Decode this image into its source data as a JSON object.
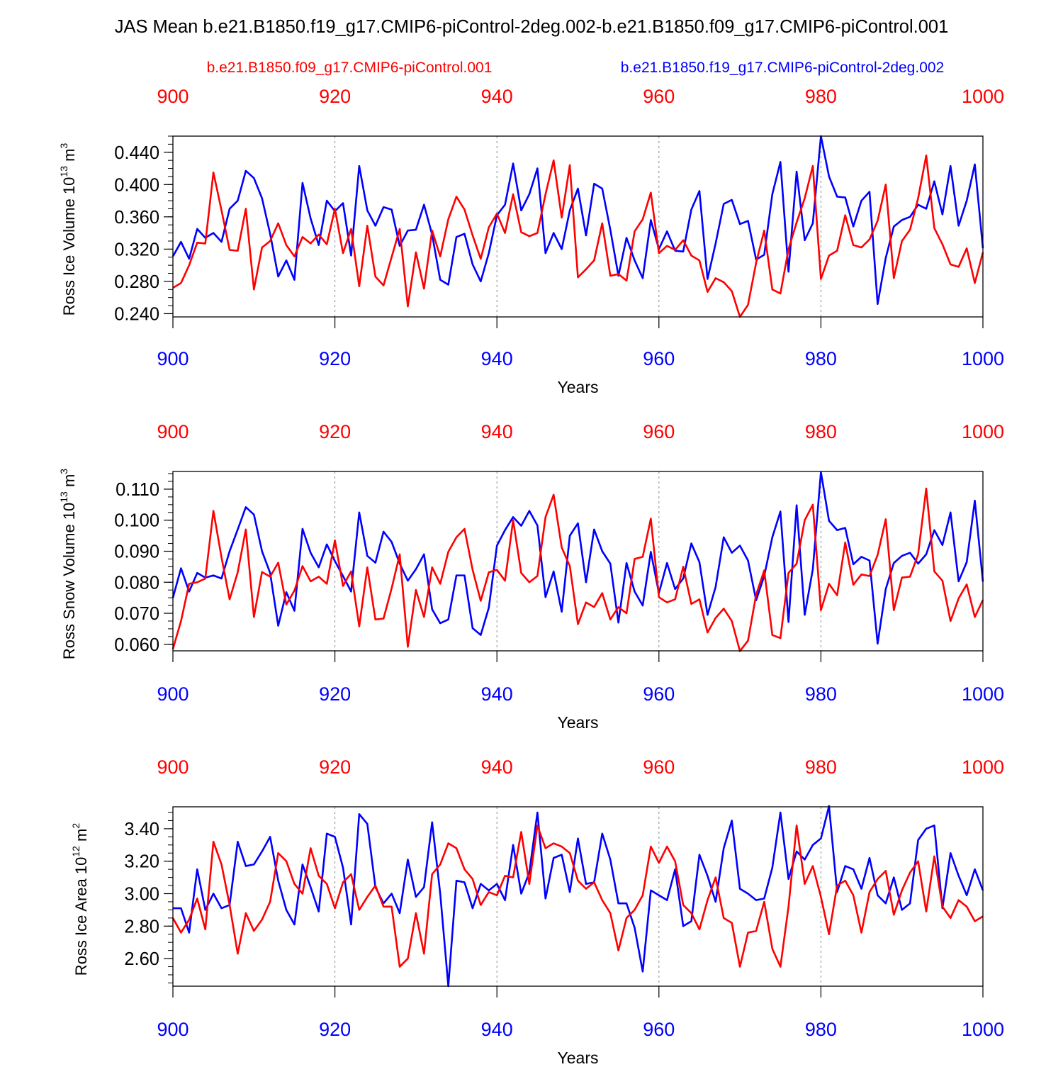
{
  "title": "JAS Mean b.e21.B1850.f19_g17.CMIP6-piControl-2deg.002-b.e21.B1850.f09_g17.CMIP6-piControl.001",
  "legend": {
    "red_label": "b.e21.B1850.f09_g17.CMIP6-piControl.001",
    "blue_label": "b.e21.B1850.f19_g17.CMIP6-piControl-2deg.002"
  },
  "colors": {
    "red": "#ff0000",
    "blue": "#0000ff",
    "axis": "#000000",
    "grid": "#888888"
  },
  "chart_data": [
    {
      "type": "line",
      "ylabel": "Ross Ice Volume 10",
      "ylabel_exp": "13",
      "ylabel_unit": " m",
      "ylabel_unit_exp": "3",
      "xlabel": "Years",
      "xlim": [
        900,
        1000
      ],
      "ylim": [
        0.236,
        0.46
      ],
      "yticks": [
        0.24,
        0.28,
        0.32,
        0.36,
        0.4,
        0.44
      ],
      "ytick_labels": [
        "0.240",
        "0.280",
        "0.320",
        "0.360",
        "0.400",
        "0.440"
      ],
      "yminor_step": 0.01,
      "xticks": [
        900,
        920,
        940,
        960,
        980,
        1000
      ],
      "xtick_labels": [
        "900",
        "920",
        "940",
        "960",
        "980",
        "1000"
      ],
      "grid_x": [
        920,
        940,
        960,
        980
      ],
      "series": [
        {
          "name": "b.e21.B1850.f19_g17.CMIP6-piControl-2deg.002",
          "color": "blue",
          "x_start": 900,
          "values": [
            0.311,
            0.329,
            0.308,
            0.345,
            0.334,
            0.34,
            0.329,
            0.37,
            0.38,
            0.417,
            0.408,
            0.383,
            0.339,
            0.286,
            0.306,
            0.282,
            0.402,
            0.358,
            0.325,
            0.38,
            0.367,
            0.377,
            0.312,
            0.423,
            0.368,
            0.349,
            0.372,
            0.369,
            0.324,
            0.343,
            0.344,
            0.375,
            0.338,
            0.282,
            0.276,
            0.335,
            0.339,
            0.301,
            0.28,
            0.315,
            0.362,
            0.375,
            0.426,
            0.368,
            0.388,
            0.42,
            0.315,
            0.34,
            0.32,
            0.368,
            0.395,
            0.337,
            0.401,
            0.395,
            0.344,
            0.287,
            0.334,
            0.306,
            0.284,
            0.356,
            0.32,
            0.342,
            0.318,
            0.317,
            0.369,
            0.392,
            0.283,
            0.327,
            0.376,
            0.381,
            0.351,
            0.355,
            0.307,
            0.313,
            0.388,
            0.428,
            0.292,
            0.416,
            0.331,
            0.352,
            0.46,
            0.41,
            0.385,
            0.384,
            0.348,
            0.38,
            0.391,
            0.252,
            0.309,
            0.348,
            0.356,
            0.36,
            0.375,
            0.37,
            0.404,
            0.363,
            0.423,
            0.349,
            0.38,
            0.425,
            0.321
          ]
        },
        {
          "name": "b.e21.B1850.f09_g17.CMIP6-piControl.001",
          "color": "red",
          "x_start": 900,
          "values": [
            0.272,
            0.278,
            0.3,
            0.328,
            0.327,
            0.415,
            0.368,
            0.319,
            0.318,
            0.37,
            0.27,
            0.322,
            0.33,
            0.352,
            0.325,
            0.311,
            0.335,
            0.327,
            0.338,
            0.326,
            0.37,
            0.315,
            0.345,
            0.274,
            0.349,
            0.286,
            0.275,
            0.31,
            0.345,
            0.249,
            0.316,
            0.271,
            0.343,
            0.311,
            0.357,
            0.385,
            0.369,
            0.337,
            0.308,
            0.347,
            0.364,
            0.34,
            0.388,
            0.341,
            0.336,
            0.34,
            0.388,
            0.43,
            0.359,
            0.424,
            0.285,
            0.295,
            0.306,
            0.352,
            0.287,
            0.289,
            0.281,
            0.342,
            0.357,
            0.39,
            0.315,
            0.324,
            0.319,
            0.331,
            0.312,
            0.306,
            0.267,
            0.284,
            0.279,
            0.268,
            0.236,
            0.251,
            0.303,
            0.343,
            0.27,
            0.265,
            0.32,
            0.353,
            0.383,
            0.423,
            0.283,
            0.312,
            0.318,
            0.362,
            0.325,
            0.322,
            0.332,
            0.355,
            0.4,
            0.284,
            0.33,
            0.344,
            0.383,
            0.436,
            0.346,
            0.326,
            0.301,
            0.298,
            0.321,
            0.278,
            0.316
          ]
        }
      ]
    },
    {
      "type": "line",
      "ylabel": "Ross Snow Volume 10",
      "ylabel_exp": "13",
      "ylabel_unit": " m",
      "ylabel_unit_exp": "3",
      "xlabel": "Years",
      "xlim": [
        900,
        1000
      ],
      "ylim": [
        0.0579,
        0.1157
      ],
      "yticks": [
        0.06,
        0.07,
        0.08,
        0.09,
        0.1,
        0.11
      ],
      "ytick_labels": [
        "0.060",
        "0.070",
        "0.080",
        "0.090",
        "0.100",
        "0.110"
      ],
      "yminor_step": 0.0025,
      "xticks": [
        900,
        920,
        940,
        960,
        980,
        1000
      ],
      "xtick_labels": [
        "900",
        "920",
        "940",
        "960",
        "980",
        "1000"
      ],
      "grid_x": [
        920,
        940,
        960,
        980
      ],
      "series": [
        {
          "name": "b.e21.B1850.f19_g17.CMIP6-piControl-2deg.002",
          "color": "blue",
          "x_start": 900,
          "values": [
            0.075,
            0.0845,
            0.077,
            0.083,
            0.0815,
            0.0822,
            0.0812,
            0.09,
            0.097,
            0.1042,
            0.1018,
            0.09,
            0.083,
            0.066,
            0.0768,
            0.0708,
            0.0972,
            0.0895,
            0.0848,
            0.0922,
            0.0868,
            0.082,
            0.077,
            0.1025,
            0.0885,
            0.0863,
            0.0963,
            0.093,
            0.086,
            0.0805,
            0.0842,
            0.089,
            0.0713,
            0.0668,
            0.068,
            0.0822,
            0.0822,
            0.0652,
            0.063,
            0.0718,
            0.0918,
            0.0968,
            0.101,
            0.0982,
            0.103,
            0.0983,
            0.0752,
            0.0835,
            0.0705,
            0.095,
            0.099,
            0.08,
            0.097,
            0.09,
            0.086,
            0.067,
            0.0862,
            0.077,
            0.0725,
            0.0898,
            0.0765,
            0.0862,
            0.0778,
            0.0812,
            0.0925,
            0.0865,
            0.0695,
            0.0785,
            0.0945,
            0.0895,
            0.0918,
            0.087,
            0.0742,
            0.082,
            0.0945,
            0.1028,
            0.0672,
            0.1048,
            0.0695,
            0.0842,
            0.1155,
            0.0998,
            0.0968,
            0.0975,
            0.0858,
            0.0882,
            0.087,
            0.0602,
            0.0778,
            0.0862,
            0.0885,
            0.0895,
            0.086,
            0.089,
            0.0968,
            0.092,
            0.1025,
            0.0803,
            0.0865,
            0.1063,
            0.0802
          ]
        },
        {
          "name": "b.e21.B1850.f09_g17.CMIP6-piControl.001",
          "color": "red",
          "x_start": 900,
          "values": [
            0.0585,
            0.0675,
            0.0795,
            0.08,
            0.0812,
            0.103,
            0.088,
            0.0745,
            0.0832,
            0.097,
            0.0688,
            0.0833,
            0.0818,
            0.0863,
            0.0728,
            0.0773,
            0.0852,
            0.0803,
            0.0818,
            0.0795,
            0.0935,
            0.0788,
            0.0835,
            0.0658,
            0.0848,
            0.068,
            0.0683,
            0.078,
            0.089,
            0.0592,
            0.0775,
            0.0688,
            0.0848,
            0.0795,
            0.0898,
            0.0945,
            0.0972,
            0.084,
            0.074,
            0.0832,
            0.084,
            0.0805,
            0.1,
            0.083,
            0.08,
            0.082,
            0.101,
            0.1082,
            0.0912,
            0.0852,
            0.0665,
            0.0735,
            0.072,
            0.0765,
            0.068,
            0.072,
            0.07,
            0.0875,
            0.0882,
            0.1005,
            0.0752,
            0.0735,
            0.0745,
            0.085,
            0.073,
            0.0745,
            0.0638,
            0.0685,
            0.0715,
            0.0675,
            0.0578,
            0.0612,
            0.076,
            0.0838,
            0.063,
            0.062,
            0.083,
            0.086,
            0.1,
            0.105,
            0.071,
            0.0795,
            0.0758,
            0.0928,
            0.0792,
            0.0825,
            0.082,
            0.0888,
            0.1003,
            0.071,
            0.0815,
            0.0818,
            0.089,
            0.1102,
            0.0835,
            0.0805,
            0.0675,
            0.0748,
            0.0793,
            0.0688,
            0.0743
          ]
        }
      ]
    },
    {
      "type": "line",
      "ylabel": "Ross Ice Area 10",
      "ylabel_exp": "12",
      "ylabel_unit": " m",
      "ylabel_unit_exp": "2",
      "xlabel": "Years",
      "xlim": [
        900,
        1000
      ],
      "ylim": [
        2.43,
        3.535
      ],
      "yticks": [
        2.6,
        2.8,
        3.0,
        3.2,
        3.4
      ],
      "ytick_labels": [
        "2.60",
        "2.80",
        "3.00",
        "3.20",
        "3.40"
      ],
      "yminor_step": 0.05,
      "xticks": [
        900,
        920,
        940,
        960,
        980,
        1000
      ],
      "xtick_labels": [
        "900",
        "920",
        "940",
        "960",
        "980",
        "1000"
      ],
      "grid_x": [
        920,
        940,
        960,
        980
      ],
      "series": [
        {
          "name": "b.e21.B1850.f19_g17.CMIP6-piControl-2deg.002",
          "color": "blue",
          "x_start": 900,
          "values": [
            2.91,
            2.91,
            2.76,
            3.15,
            2.9,
            3.0,
            2.91,
            2.93,
            3.32,
            3.17,
            3.18,
            3.26,
            3.35,
            3.08,
            2.9,
            2.81,
            3.18,
            3.04,
            2.89,
            3.37,
            3.35,
            3.16,
            2.81,
            3.49,
            3.43,
            3.04,
            2.94,
            3.0,
            2.88,
            3.21,
            2.98,
            3.04,
            3.44,
            3.0,
            2.43,
            3.08,
            3.07,
            2.91,
            3.06,
            3.02,
            3.06,
            2.96,
            3.3,
            3.0,
            3.13,
            3.5,
            2.97,
            3.22,
            3.24,
            3.01,
            3.34,
            3.06,
            3.07,
            3.37,
            3.21,
            2.94,
            2.94,
            2.79,
            2.52,
            3.02,
            2.99,
            2.96,
            3.15,
            2.8,
            2.83,
            3.24,
            3.11,
            2.95,
            3.28,
            3.45,
            3.03,
            3.0,
            2.96,
            2.97,
            3.16,
            3.5,
            3.09,
            3.26,
            3.21,
            3.3,
            3.34,
            3.54,
            3.01,
            3.17,
            3.15,
            3.03,
            3.22,
            2.99,
            2.94,
            3.1,
            2.9,
            2.94,
            3.33,
            3.4,
            3.42,
            2.91,
            3.25,
            3.11,
            2.99,
            3.15,
            3.02
          ]
        },
        {
          "name": "b.e21.B1850.f09_g17.CMIP6-piControl.001",
          "color": "red",
          "x_start": 900,
          "values": [
            2.85,
            2.76,
            2.84,
            2.97,
            2.78,
            3.32,
            3.18,
            2.93,
            2.63,
            2.88,
            2.77,
            2.84,
            2.95,
            3.25,
            3.2,
            3.06,
            3.0,
            3.28,
            3.11,
            3.06,
            2.91,
            3.07,
            3.12,
            2.9,
            2.98,
            3.05,
            2.92,
            2.92,
            2.55,
            2.6,
            2.88,
            2.63,
            3.12,
            3.18,
            3.31,
            3.28,
            3.15,
            3.09,
            2.93,
            3.01,
            2.99,
            3.11,
            3.1,
            3.38,
            3.06,
            3.42,
            3.28,
            3.31,
            3.29,
            3.25,
            3.08,
            3.03,
            3.07,
            2.96,
            2.88,
            2.65,
            2.85,
            2.9,
            2.99,
            3.29,
            3.19,
            3.29,
            3.2,
            2.93,
            2.88,
            2.78,
            2.96,
            3.1,
            2.85,
            2.82,
            2.55,
            2.76,
            2.77,
            2.95,
            2.66,
            2.55,
            2.92,
            3.42,
            3.06,
            3.17,
            2.98,
            2.75,
            3.05,
            3.08,
            2.99,
            2.76,
            3.01,
            3.09,
            3.14,
            2.87,
            3.02,
            3.13,
            3.2,
            2.89,
            3.23,
            2.92,
            2.85,
            2.96,
            2.92,
            2.83,
            2.86
          ]
        }
      ]
    }
  ]
}
